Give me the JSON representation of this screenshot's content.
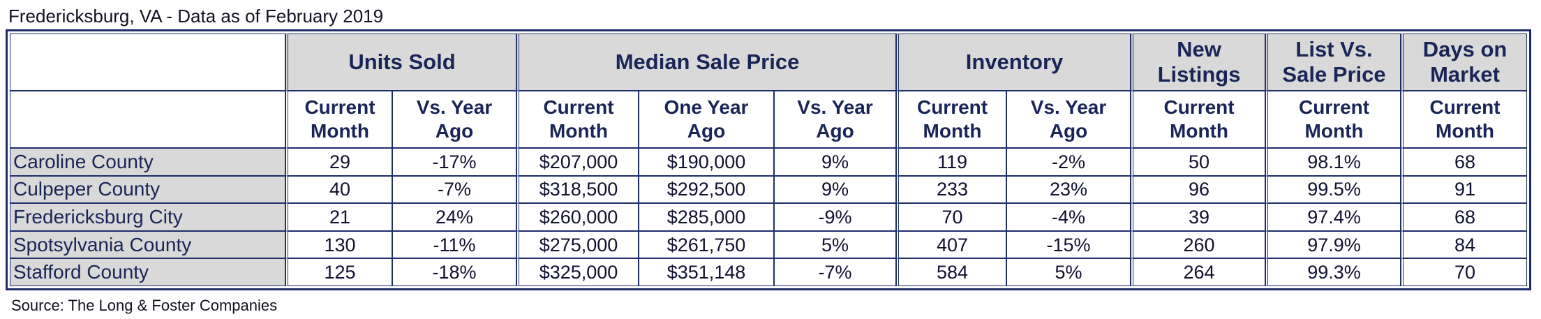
{
  "title": "Fredericksburg, VA - Data as of February 2019",
  "source": "Source: The Long & Foster Companies",
  "colors": {
    "border": "#1f2d6b",
    "header_fill": "#d9d9d9",
    "header_text": "#1a2557"
  },
  "groups": {
    "units_sold": "Units Sold",
    "median_sale_price": "Median Sale Price",
    "inventory": "Inventory",
    "new_listings_l1": "New",
    "new_listings_l2": "Listings",
    "list_vs_sale_l1": "List Vs.",
    "list_vs_sale_l2": "Sale Price",
    "days_on_market_l1": "Days on",
    "days_on_market_l2": "Market"
  },
  "subheaders": {
    "current_l1": "Current",
    "current_l2": "Month",
    "vs_year_l1": "Vs. Year",
    "vs_year_l2": "Ago",
    "one_year_l1": "One Year",
    "one_year_l2": "Ago"
  },
  "rows": [
    {
      "name": "Caroline County",
      "units_current": "29",
      "units_vs": "-17%",
      "median_current": "$207,000",
      "median_one_year": "$190,000",
      "median_vs": "9%",
      "inv_current": "119",
      "inv_vs": "-2%",
      "new_listings": "50",
      "list_vs_sale": "98.1%",
      "days_on_market": "68"
    },
    {
      "name": "Culpeper County",
      "units_current": "40",
      "units_vs": "-7%",
      "median_current": "$318,500",
      "median_one_year": "$292,500",
      "median_vs": "9%",
      "inv_current": "233",
      "inv_vs": "23%",
      "new_listings": "96",
      "list_vs_sale": "99.5%",
      "days_on_market": "91"
    },
    {
      "name": "Fredericksburg City",
      "units_current": "21",
      "units_vs": "24%",
      "median_current": "$260,000",
      "median_one_year": "$285,000",
      "median_vs": "-9%",
      "inv_current": "70",
      "inv_vs": "-4%",
      "new_listings": "39",
      "list_vs_sale": "97.4%",
      "days_on_market": "68"
    },
    {
      "name": "Spotsylvania County",
      "units_current": "130",
      "units_vs": "-11%",
      "median_current": "$275,000",
      "median_one_year": "$261,750",
      "median_vs": "5%",
      "inv_current": "407",
      "inv_vs": "-15%",
      "new_listings": "260",
      "list_vs_sale": "97.9%",
      "days_on_market": "84"
    },
    {
      "name": "Stafford County",
      "units_current": "125",
      "units_vs": "-18%",
      "median_current": "$325,000",
      "median_one_year": "$351,148",
      "median_vs": "-7%",
      "inv_current": "584",
      "inv_vs": "5%",
      "new_listings": "264",
      "list_vs_sale": "99.3%",
      "days_on_market": "70"
    }
  ]
}
